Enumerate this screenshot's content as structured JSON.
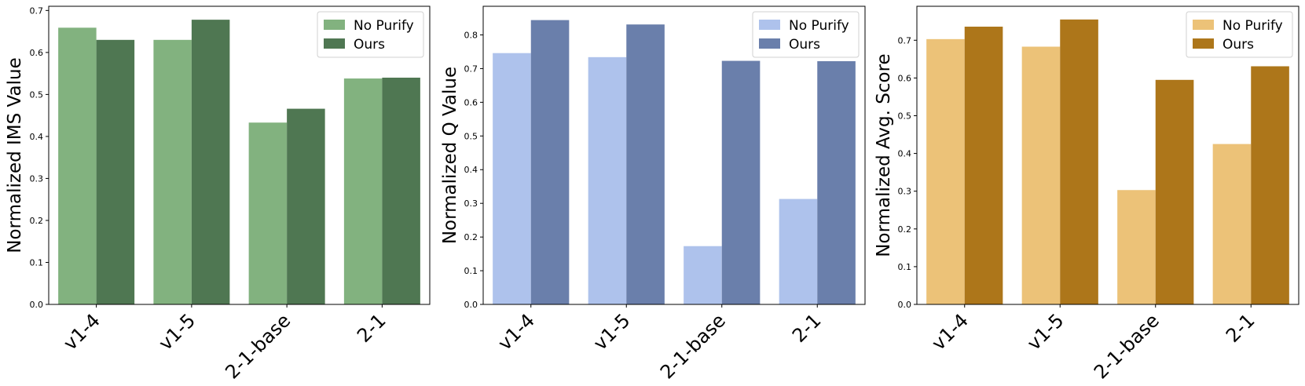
{
  "chart_data": [
    {
      "type": "bar",
      "categories": [
        "v1-4",
        "v1-5",
        "2-1-base",
        "2-1"
      ],
      "xlabel": "",
      "ylabel": "Normalized IMS Value",
      "ylim": [
        0,
        0.71
      ],
      "yticks": [
        0.0,
        0.1,
        0.2,
        0.3,
        0.4,
        0.5,
        0.6,
        0.7
      ],
      "yticklabels": [
        "0.0",
        "0.1",
        "0.2",
        "0.3",
        "0.4",
        "0.5",
        "0.6",
        "0.7"
      ],
      "legend_position": "top-right",
      "grid": false,
      "series": [
        {
          "name": "No Purify",
          "color": "#82b27f",
          "values": [
            0.659,
            0.63,
            0.433,
            0.538
          ]
        },
        {
          "name": "Ours",
          "color": "#4f7752",
          "values": [
            0.63,
            0.678,
            0.466,
            0.54
          ]
        }
      ]
    },
    {
      "type": "bar",
      "categories": [
        "v1-4",
        "v1-5",
        "2-1-base",
        "2-1"
      ],
      "xlabel": "",
      "ylabel": "Normalized Q Value",
      "ylim": [
        0,
        0.885
      ],
      "yticks": [
        0.0,
        0.1,
        0.2,
        0.3,
        0.4,
        0.5,
        0.6,
        0.7,
        0.8
      ],
      "yticklabels": [
        "0.0",
        "0.1",
        "0.2",
        "0.3",
        "0.4",
        "0.5",
        "0.6",
        "0.7",
        "0.8"
      ],
      "legend_position": "top-right",
      "grid": false,
      "series": [
        {
          "name": "No Purify",
          "color": "#aec2ec",
          "values": [
            0.746,
            0.734,
            0.173,
            0.313
          ]
        },
        {
          "name": "Ours",
          "color": "#6a7fab",
          "values": [
            0.844,
            0.831,
            0.723,
            0.722
          ]
        }
      ]
    },
    {
      "type": "bar",
      "categories": [
        "v1-4",
        "v1-5",
        "2-1-base",
        "2-1"
      ],
      "xlabel": "",
      "ylabel": "Normalized Avg. Score",
      "ylim": [
        0,
        0.79
      ],
      "yticks": [
        0.0,
        0.1,
        0.2,
        0.3,
        0.4,
        0.5,
        0.6,
        0.7
      ],
      "yticklabels": [
        "0.0",
        "0.1",
        "0.2",
        "0.3",
        "0.4",
        "0.5",
        "0.6",
        "0.7"
      ],
      "legend_position": "top-right",
      "grid": false,
      "series": [
        {
          "name": "No Purify",
          "color": "#ecc278",
          "values": [
            0.703,
            0.683,
            0.303,
            0.425
          ]
        },
        {
          "name": "Ours",
          "color": "#ad761a",
          "values": [
            0.736,
            0.755,
            0.595,
            0.631
          ]
        }
      ]
    }
  ]
}
